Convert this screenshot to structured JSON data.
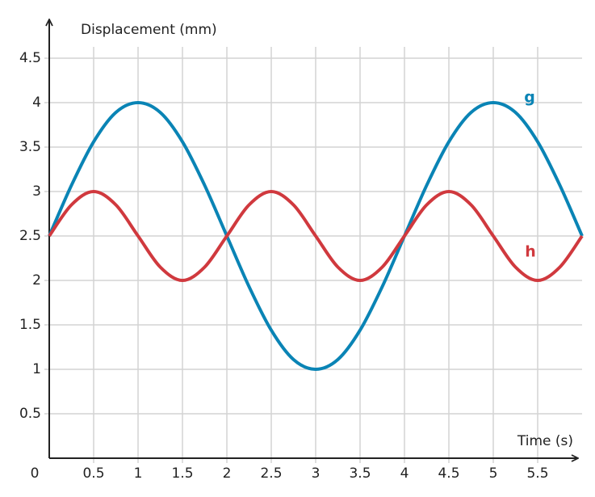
{
  "chart_data": {
    "type": "line",
    "y_label": "Displacement (mm)",
    "x_label": "Time (s)",
    "x": [
      0,
      0.25,
      0.5,
      0.75,
      1,
      1.25,
      1.5,
      1.75,
      2,
      2.25,
      2.5,
      2.75,
      3,
      3.25,
      3.5,
      3.75,
      4,
      4.25,
      4.5,
      4.75,
      5,
      5.25,
      5.5,
      5.75,
      6
    ],
    "series": [
      {
        "name": "g",
        "color": "#0a84b5",
        "values": [
          2.5,
          3.07,
          3.56,
          3.89,
          4,
          3.89,
          3.56,
          3.07,
          2.5,
          1.93,
          1.44,
          1.11,
          1,
          1.11,
          1.44,
          1.93,
          2.5,
          3.07,
          3.56,
          3.89,
          4,
          3.89,
          3.56,
          3.07,
          2.5
        ]
      },
      {
        "name": "h",
        "color": "#d0393e",
        "values": [
          2.5,
          2.85,
          3,
          2.85,
          2.5,
          2.15,
          2,
          2.15,
          2.5,
          2.85,
          3,
          2.85,
          2.5,
          2.15,
          2,
          2.15,
          2.5,
          2.85,
          3,
          2.85,
          2.5,
          2.15,
          2,
          2.15,
          2.5
        ]
      }
    ],
    "xlim": [
      0,
      6
    ],
    "ylim": [
      0,
      4.9
    ],
    "xticks": [
      0,
      0.5,
      1,
      1.5,
      2,
      2.5,
      3,
      3.5,
      4,
      4.5,
      5,
      5.5
    ],
    "yticks": [
      0.5,
      1,
      1.5,
      2,
      2.5,
      3,
      3.5,
      4,
      4.5
    ],
    "grid": true
  }
}
